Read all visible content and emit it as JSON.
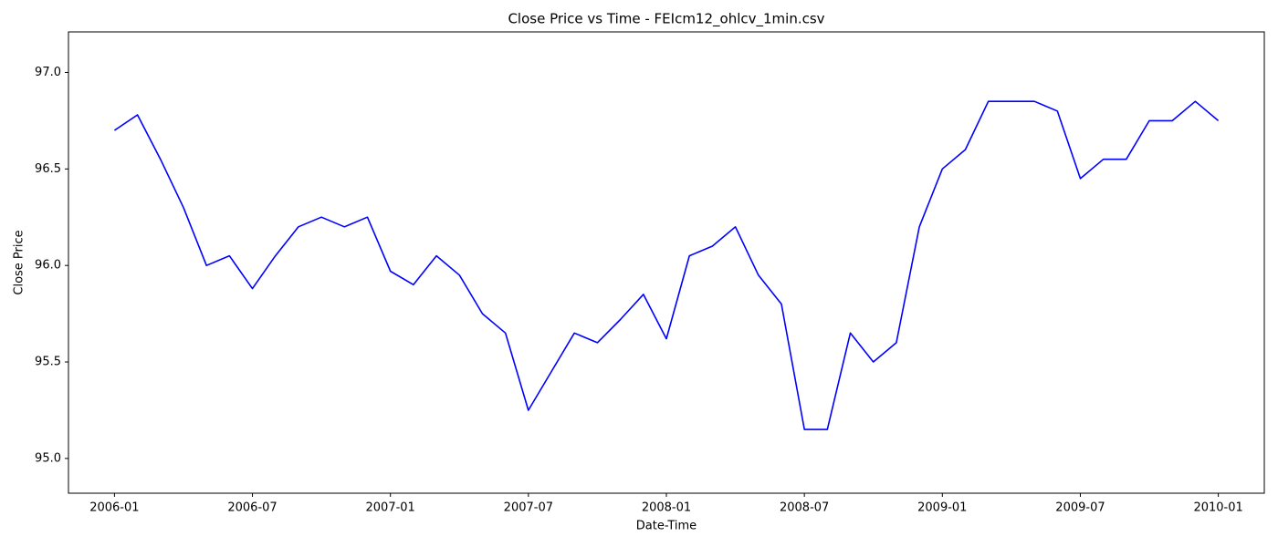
{
  "chart_data": {
    "type": "line",
    "title": "Close Price vs Time - FEIcm12_ohlcv_1min.csv",
    "x_label": "Date-Time",
    "y_label": "Close Price",
    "x": [
      "2006-01",
      "2006-02",
      "2006-03",
      "2006-04",
      "2006-05",
      "2006-06",
      "2006-07",
      "2006-08",
      "2006-09",
      "2006-10",
      "2006-11",
      "2006-12",
      "2007-01",
      "2007-02",
      "2007-03",
      "2007-04",
      "2007-05",
      "2007-06",
      "2007-07",
      "2007-08",
      "2007-09",
      "2007-10",
      "2007-11",
      "2007-12",
      "2008-01",
      "2008-02",
      "2008-03",
      "2008-04",
      "2008-05",
      "2008-06",
      "2008-07",
      "2008-08",
      "2008-09",
      "2008-10",
      "2008-11",
      "2008-12",
      "2009-01",
      "2009-02",
      "2009-03",
      "2009-04",
      "2009-05",
      "2009-06",
      "2009-07",
      "2009-08",
      "2009-09",
      "2009-10",
      "2009-11",
      "2009-12",
      "2010-01"
    ],
    "series": [
      {
        "name": "Close",
        "color": "#0000ff",
        "values": [
          96.7,
          96.78,
          96.55,
          96.3,
          96.0,
          96.05,
          95.88,
          96.05,
          96.2,
          96.25,
          96.2,
          96.25,
          95.97,
          95.9,
          96.05,
          95.95,
          95.75,
          95.65,
          95.25,
          95.45,
          95.65,
          95.6,
          95.72,
          95.85,
          95.62,
          96.05,
          96.1,
          96.2,
          95.95,
          95.8,
          95.15,
          95.15,
          95.65,
          95.5,
          95.6,
          96.2,
          96.5,
          96.6,
          96.85,
          96.85,
          96.85,
          96.8,
          96.45,
          96.55,
          96.55,
          96.75,
          96.75,
          96.85,
          96.75
        ]
      }
    ],
    "xlim": [
      "2005-11",
      "2010-03"
    ],
    "xticks": [
      "2006-01",
      "2006-07",
      "2007-01",
      "2007-07",
      "2008-01",
      "2008-07",
      "2009-01",
      "2009-07",
      "2010-01"
    ],
    "ylim": [
      94.82,
      97.21
    ],
    "yticks": [
      {
        "value": 95,
        "label": "95.0"
      },
      {
        "value": 95.5,
        "label": "95.5"
      },
      {
        "value": 96,
        "label": "96.0"
      },
      {
        "value": 96.5,
        "label": "96.5"
      },
      {
        "value": 97,
        "label": "97.0"
      }
    ],
    "grid": false
  }
}
